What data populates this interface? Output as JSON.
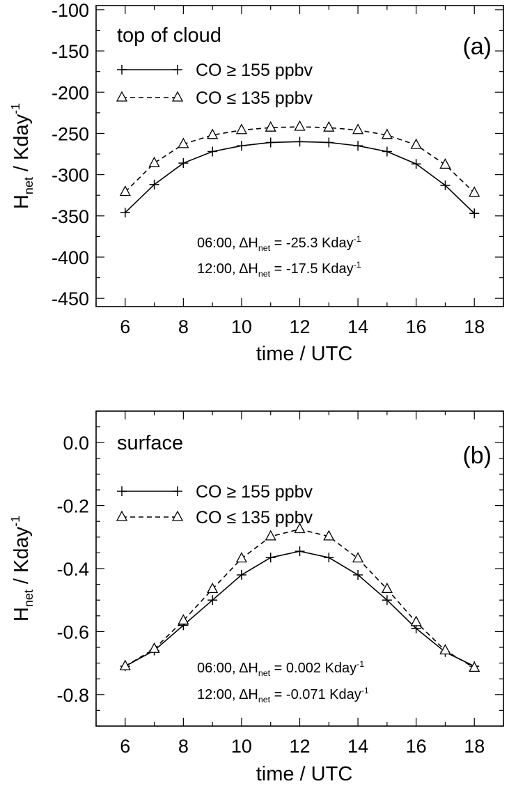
{
  "chart_data": [
    {
      "type": "line",
      "panel_label": "(a)",
      "title": "top of cloud",
      "xlabel": "time / UTC",
      "ylabel": {
        "main": "H",
        "sub": "net",
        "rest": " / Kday",
        "sup": "-1"
      },
      "xlim": [
        5,
        19
      ],
      "ylim": [
        -460,
        -95
      ],
      "xticks": [
        6,
        8,
        10,
        12,
        14,
        16,
        18
      ],
      "xtick_labels": [
        "6",
        "8",
        "10",
        "12",
        "14",
        "16",
        "18"
      ],
      "yticks": [
        -450,
        -400,
        -350,
        -300,
        -250,
        -200,
        -150,
        -100
      ],
      "ytick_labels": [
        "-450",
        "-400",
        "-350",
        "-300",
        "-250",
        "-200",
        "-150",
        "-100"
      ],
      "grid": false,
      "legend_placement": "upper-left",
      "x": [
        6,
        7,
        8,
        9,
        10,
        11,
        12,
        13,
        14,
        15,
        16,
        17,
        18
      ],
      "series": [
        {
          "name": "CO ≥ 155 ppbv",
          "name_parts": {
            "pre": "CO ",
            "sym": "≥",
            "post": " 155 ppbv"
          },
          "line_style": "solid",
          "marker": "plus",
          "color": "#000000",
          "values": [
            -346,
            -312,
            -286,
            -272,
            -265,
            -261,
            -260,
            -261,
            -265,
            -272,
            -287,
            -313,
            -347
          ]
        },
        {
          "name": "CO ≤ 135 ppbv",
          "name_parts": {
            "pre": "CO ",
            "sym": "≤",
            "post": " 135 ppbv"
          },
          "line_style": "dashed",
          "marker": "triangle",
          "color": "#000000",
          "values": [
            -321,
            -286,
            -263,
            -252,
            -246,
            -243,
            -242,
            -243,
            -246,
            -252,
            -264,
            -288,
            -322
          ]
        }
      ],
      "annotations": [
        {
          "time": "06:00, ",
          "delta": "ΔH",
          "sub": "net",
          "eq": " = -25.3 Kday",
          "sup": "-1"
        },
        {
          "time": "12:00, ",
          "delta": "ΔH",
          "sub": "net",
          "eq": " = -17.5 Kday",
          "sup": "-1"
        }
      ]
    },
    {
      "type": "line",
      "panel_label": "(b)",
      "title": "surface",
      "xlabel": "time / UTC",
      "ylabel": {
        "main": "H",
        "sub": "net",
        "rest": " / Kday",
        "sup": "-1"
      },
      "xlim": [
        5,
        19
      ],
      "ylim": [
        -0.9,
        0.1
      ],
      "xticks": [
        6,
        8,
        10,
        12,
        14,
        16,
        18
      ],
      "xtick_labels": [
        "6",
        "8",
        "10",
        "12",
        "14",
        "16",
        "18"
      ],
      "yticks": [
        -0.8,
        -0.6,
        -0.4,
        -0.2,
        0.0
      ],
      "ytick_labels": [
        "-0.8",
        "-0.6",
        "-0.4",
        "-0.2",
        "0.0"
      ],
      "grid": false,
      "legend_placement": "upper-left",
      "x": [
        6,
        7,
        8,
        9,
        10,
        11,
        12,
        13,
        14,
        15,
        16,
        17,
        18
      ],
      "series": [
        {
          "name": "CO ≥ 155 ppbv",
          "name_parts": {
            "pre": "CO ",
            "sym": "≥",
            "post": " 155 ppbv"
          },
          "line_style": "solid",
          "marker": "plus",
          "color": "#000000",
          "values": [
            -0.71,
            -0.66,
            -0.58,
            -0.5,
            -0.42,
            -0.365,
            -0.345,
            -0.365,
            -0.42,
            -0.5,
            -0.59,
            -0.665,
            -0.71
          ]
        },
        {
          "name": "CO ≤ 135 ppbv",
          "name_parts": {
            "pre": "CO ",
            "sym": "≤",
            "post": " 135 ppbv"
          },
          "line_style": "dashed",
          "marker": "triangle",
          "color": "#000000",
          "values": [
            -0.71,
            -0.655,
            -0.565,
            -0.465,
            -0.368,
            -0.298,
            -0.275,
            -0.298,
            -0.368,
            -0.465,
            -0.57,
            -0.66,
            -0.715
          ]
        }
      ],
      "annotations": [
        {
          "time": "06:00, ",
          "delta": "ΔH",
          "sub": "net",
          "eq": " =  0.002 Kday",
          "sup": "-1"
        },
        {
          "time": "12:00, ",
          "delta": "ΔH",
          "sub": "net",
          "eq": " = -0.071 Kday",
          "sup": "-1"
        }
      ]
    }
  ]
}
